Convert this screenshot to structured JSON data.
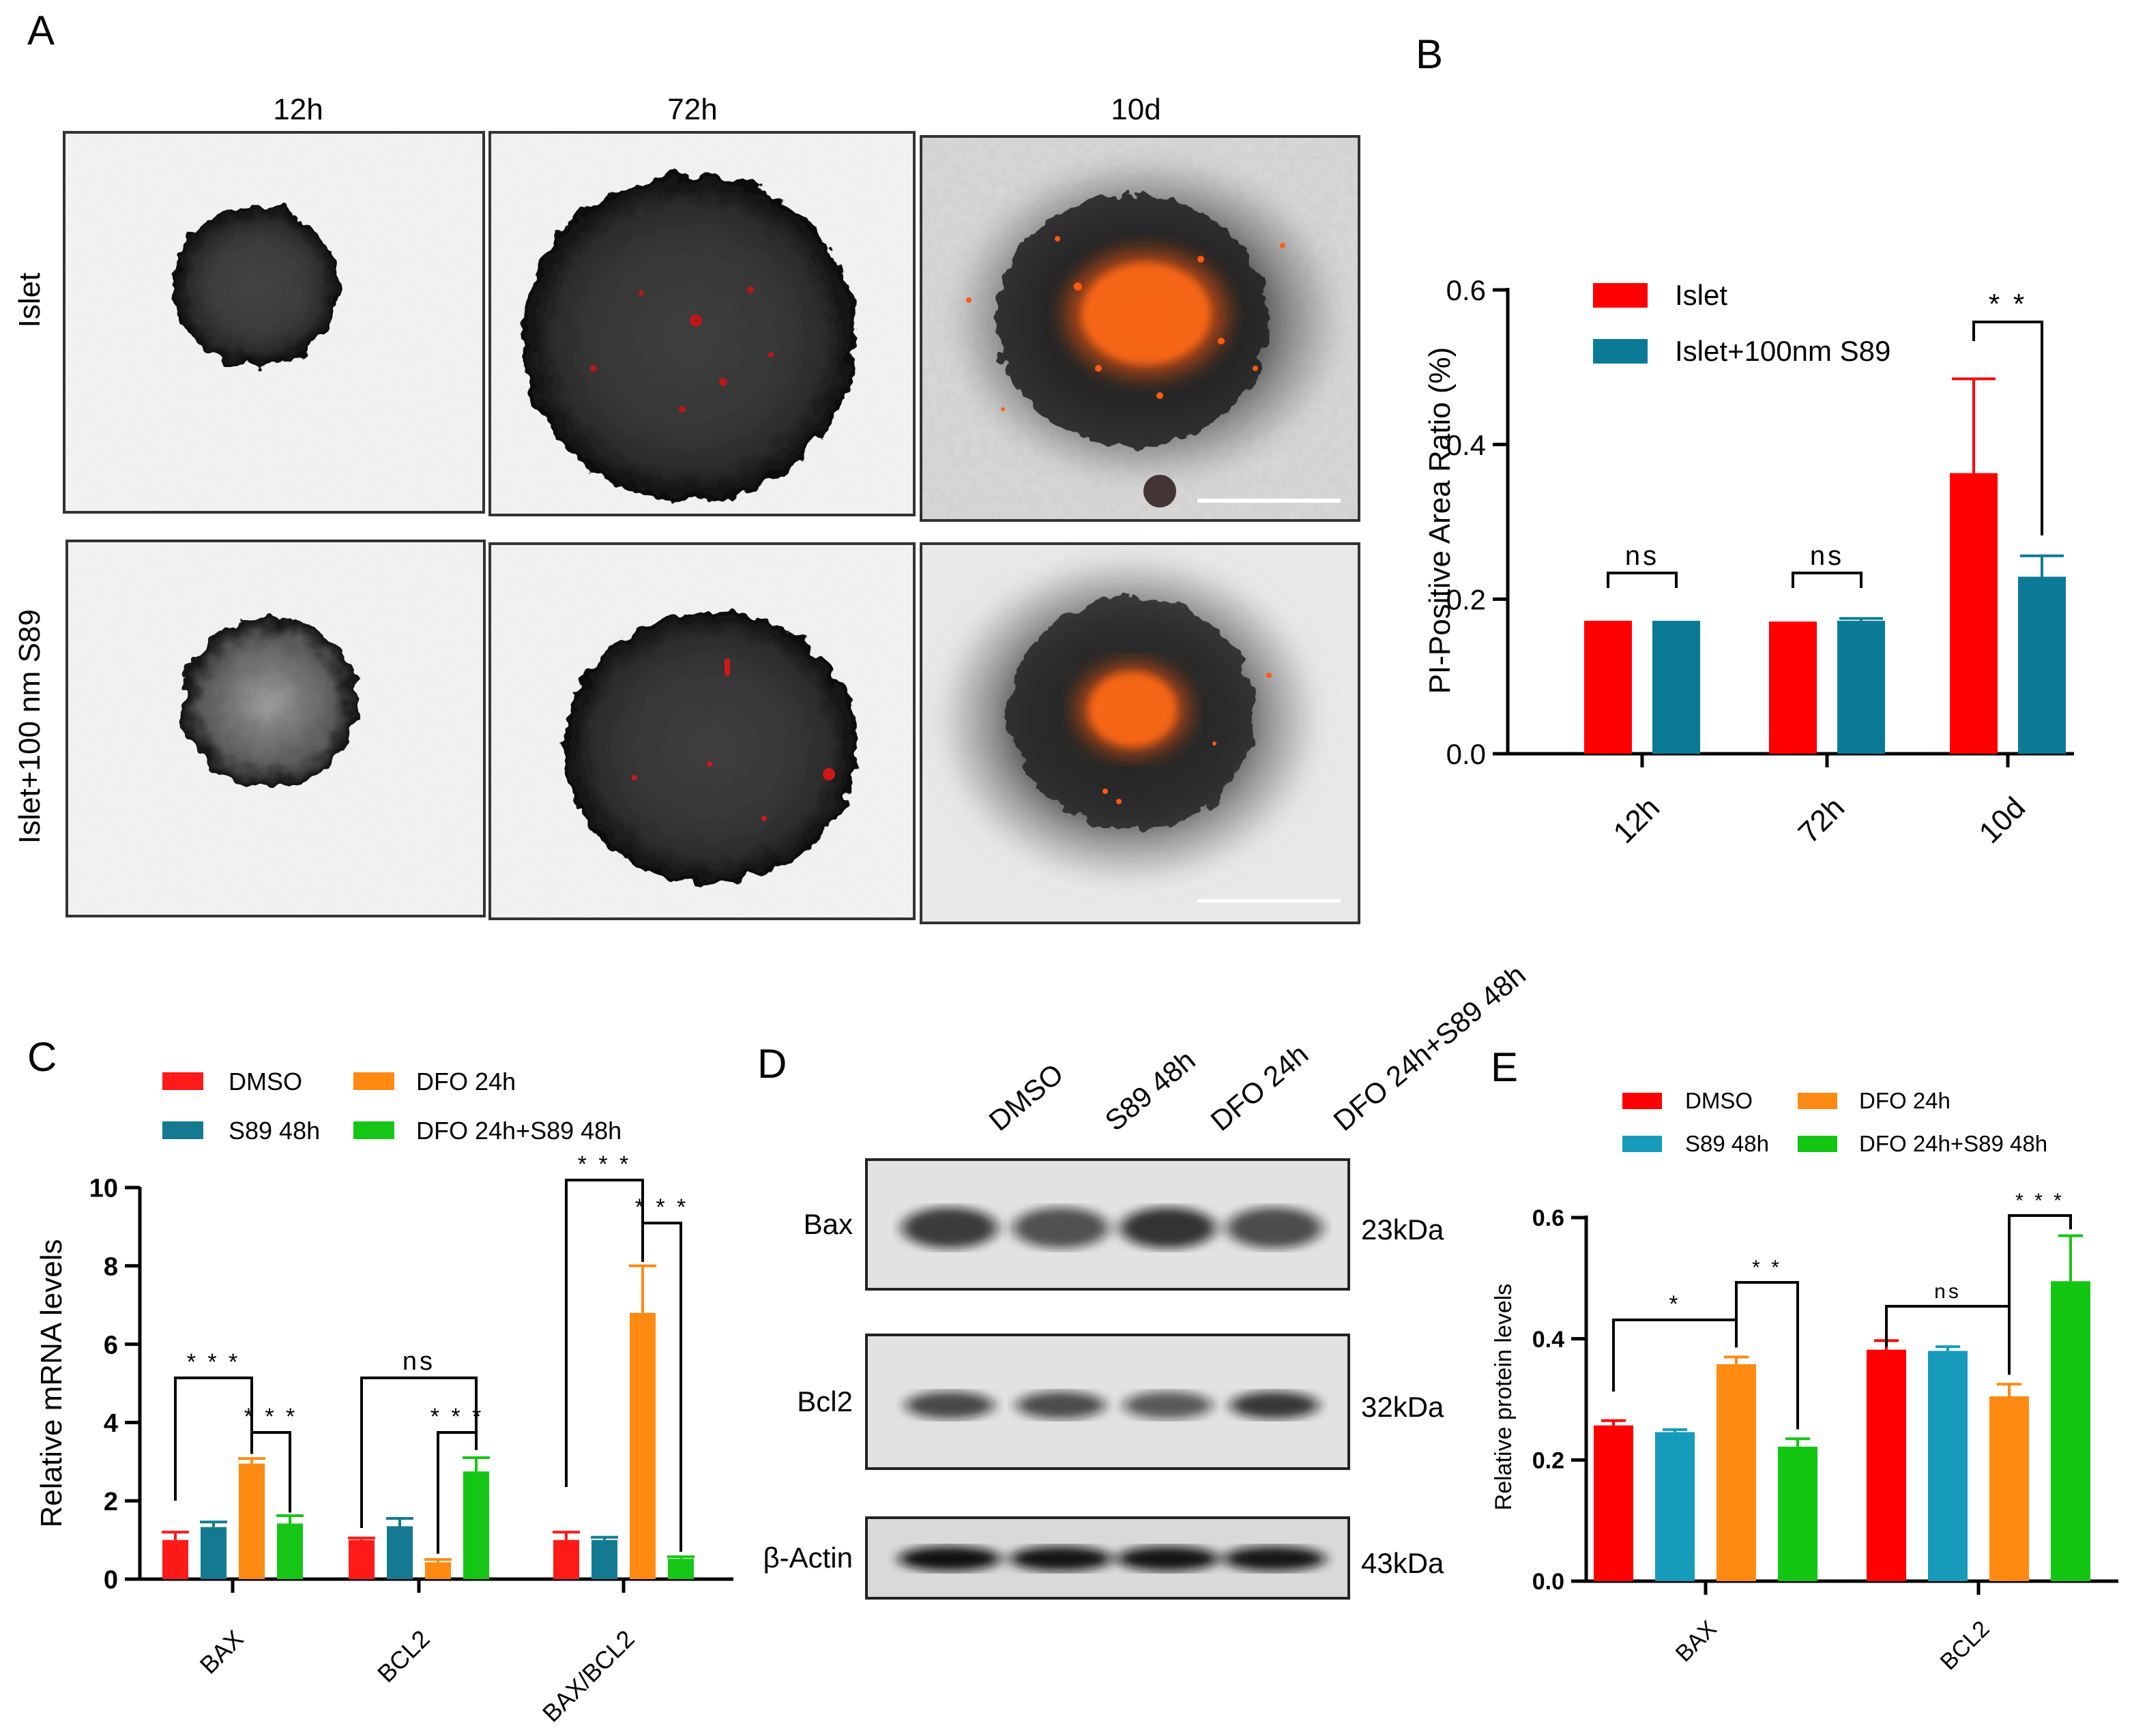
{
  "figure": {
    "panel_letters": [
      "A",
      "B",
      "C",
      "D",
      "E"
    ]
  },
  "panel_a": {
    "columns": [
      "12h",
      "72h",
      "10d"
    ],
    "rows": [
      "Islet",
      "Islet+100 nm S89"
    ],
    "micrographs": [
      {
        "row": 0,
        "col": 0,
        "islet_size": "small",
        "pi_signal": "none"
      },
      {
        "row": 0,
        "col": 1,
        "islet_size": "large",
        "pi_signal": "sparse"
      },
      {
        "row": 0,
        "col": 2,
        "islet_size": "dispersed",
        "pi_signal": "dense core",
        "scale_bar": true
      },
      {
        "row": 1,
        "col": 0,
        "islet_size": "small",
        "pi_signal": "none"
      },
      {
        "row": 1,
        "col": 1,
        "islet_size": "large",
        "pi_signal": "sparse"
      },
      {
        "row": 1,
        "col": 2,
        "islet_size": "dispersed",
        "pi_signal": "moderate core",
        "scale_bar": true
      }
    ],
    "colors": {
      "pi": "#ff5a10",
      "tissue": "#2a2a2a"
    }
  },
  "chart_data": [
    {
      "panel": "B",
      "type": "bar",
      "categories": [
        "12h",
        "72h",
        "10d"
      ],
      "series": [
        {
          "name": "Islet",
          "color": "#ff0000",
          "values": [
            0.172,
            0.171,
            0.363
          ],
          "errors": [
            0,
            0,
            0.122
          ]
        },
        {
          "name": "Islet+100nm S89",
          "color": "#0b7b95",
          "values": [
            0.172,
            0.172,
            0.229
          ],
          "errors": [
            0,
            0.003,
            0.027
          ]
        }
      ],
      "ylabel": "PI-Positive Area Ratio (%)",
      "ylim": [
        0,
        0.6
      ],
      "yticks": [
        "0.0",
        "0.2",
        "0.4",
        "0.6"
      ],
      "significance": [
        {
          "category": 0,
          "label": "ns"
        },
        {
          "category": 1,
          "label": "ns"
        },
        {
          "category": 2,
          "label": "* *"
        }
      ],
      "legend": "top-left"
    },
    {
      "panel": "C",
      "type": "bar",
      "categories": [
        "BAX",
        "BCL2",
        "BAX/BCL2"
      ],
      "series": [
        {
          "name": "DMSO",
          "color": "#ff1a1a",
          "values": [
            1.0,
            1.0,
            1.0
          ],
          "errors": [
            0.2,
            0.05,
            0.2
          ]
        },
        {
          "name": "S89 48h",
          "color": "#137a92",
          "values": [
            1.33,
            1.35,
            1.0
          ],
          "errors": [
            0.13,
            0.2,
            0.07
          ]
        },
        {
          "name": "DFO 24h",
          "color": "#ff8a12",
          "values": [
            2.95,
            0.43,
            6.8
          ],
          "errors": [
            0.13,
            0.07,
            1.2
          ]
        },
        {
          "name": "DFO 24h+S89 48h",
          "color": "#16c616",
          "values": [
            1.42,
            2.75,
            0.52
          ],
          "errors": [
            0.2,
            0.35,
            0.05
          ]
        }
      ],
      "ylabel": "Relative mRNA levels",
      "ylim": [
        0,
        10
      ],
      "yticks": [
        "0",
        "2",
        "4",
        "6",
        "8",
        "10"
      ],
      "significance": [
        {
          "category": 0,
          "pair": "DMSO-DFO 24h",
          "label": "* * *"
        },
        {
          "category": 0,
          "pair": "DFO 24h-DFO 24h+S89 48h",
          "label": "* * *"
        },
        {
          "category": 1,
          "pair": "DMSO-DFO 24h+S89 48h",
          "label": "ns"
        },
        {
          "category": 1,
          "pair": "DFO 24h-DFO 24h+S89 48h",
          "label": "* * *"
        },
        {
          "category": 2,
          "pair": "DMSO-DFO 24h",
          "label": "* * *"
        },
        {
          "category": 2,
          "pair": "DFO 24h-DFO 24h+S89 48h",
          "label": "* * *"
        }
      ],
      "legend": "top"
    },
    {
      "panel": "E",
      "type": "bar",
      "categories": [
        "BAX",
        "BCL2"
      ],
      "series": [
        {
          "name": "DMSO",
          "color": "#ff0000",
          "values": [
            0.257,
            0.382
          ],
          "errors": [
            0.008,
            0.015
          ]
        },
        {
          "name": "S89 48h",
          "color": "#169bbb",
          "values": [
            0.246,
            0.38
          ],
          "errors": [
            0.004,
            0.007
          ]
        },
        {
          "name": "DFO 24h",
          "color": "#ff8a12",
          "values": [
            0.358,
            0.305
          ],
          "errors": [
            0.012,
            0.02
          ]
        },
        {
          "name": "DFO 24h+S89 48h",
          "color": "#12c612",
          "values": [
            0.222,
            0.495
          ],
          "errors": [
            0.013,
            0.075
          ]
        }
      ],
      "ylabel": "Relative protein levels",
      "ylim": [
        0,
        0.6
      ],
      "yticks": [
        "0.0",
        "0.2",
        "0.4",
        "0.6"
      ],
      "significance": [
        {
          "category": 0,
          "pair": "DMSO-DFO 24h",
          "label": "*"
        },
        {
          "category": 0,
          "pair": "DFO 24h-DFO 24h+S89 48h",
          "label": "* *"
        },
        {
          "category": 1,
          "pair": "DMSO-DFO 24h",
          "label": "ns"
        },
        {
          "category": 1,
          "pair": "DFO 24h-DFO 24h+S89 48h",
          "label": "* * *"
        }
      ],
      "legend": "top"
    }
  ],
  "panel_d": {
    "lanes": [
      "DMSO",
      "S89 48h",
      "DFO 24h",
      "DFO 24h+S89 48h"
    ],
    "blots": [
      {
        "label": "Bax",
        "mw": "23kDa",
        "intensities": [
          0.78,
          0.68,
          0.82,
          0.7
        ]
      },
      {
        "label": "Bcl2",
        "mw": "32kDa",
        "intensities": [
          0.72,
          0.7,
          0.64,
          0.8
        ]
      },
      {
        "label": "β-Actin",
        "mw": "43kDa",
        "intensities": [
          0.98,
          0.96,
          0.96,
          0.95
        ]
      }
    ]
  }
}
